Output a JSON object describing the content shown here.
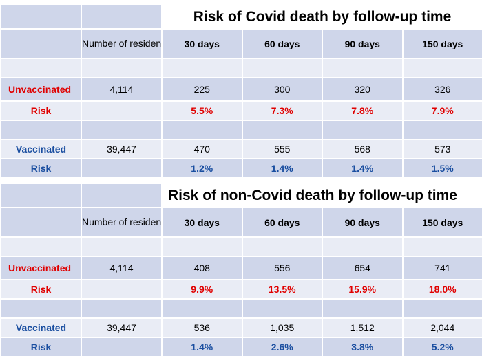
{
  "tables": [
    {
      "title": "Risk of Covid death by follow-up time",
      "residents_header": "Number of residents",
      "days": [
        "30 days",
        "60 days",
        "90 days",
        "150 days"
      ],
      "unvaccinated": {
        "label": "Unvaccinated",
        "residents": "4,114",
        "deaths": [
          "225",
          "300",
          "320",
          "326"
        ],
        "risk_label": "Risk",
        "risk": [
          "5.5%",
          "7.3%",
          "7.8%",
          "7.9%"
        ]
      },
      "vaccinated": {
        "label": "Vaccinated",
        "residents": "39,447",
        "deaths": [
          "470",
          "555",
          "568",
          "573"
        ],
        "risk_label": "Risk",
        "risk": [
          "1.2%",
          "1.4%",
          "1.4%",
          "1.5%"
        ]
      }
    },
    {
      "title": "Risk of non-Covid death by follow-up time",
      "residents_header": "Number of residents",
      "days": [
        "30 days",
        "60 days",
        "90 days",
        "150 days"
      ],
      "unvaccinated": {
        "label": "Unvaccinated",
        "residents": "4,114",
        "deaths": [
          "408",
          "556",
          "654",
          "741"
        ],
        "risk_label": "Risk",
        "risk": [
          "9.9%",
          "13.5%",
          "15.9%",
          "18.0%"
        ]
      },
      "vaccinated": {
        "label": "Vaccinated",
        "residents": "39,447",
        "deaths": [
          "536",
          "1,035",
          "1,512",
          "2,044"
        ],
        "risk_label": "Risk",
        "risk": [
          "1.4%",
          "2.6%",
          "3.8%",
          "5.2%"
        ]
      }
    }
  ],
  "colors": {
    "header_bg": "#cfd6ea",
    "row_bg": "#e9ecf5",
    "unvaccinated": "#e00000",
    "vaccinated": "#1a4ea0"
  }
}
